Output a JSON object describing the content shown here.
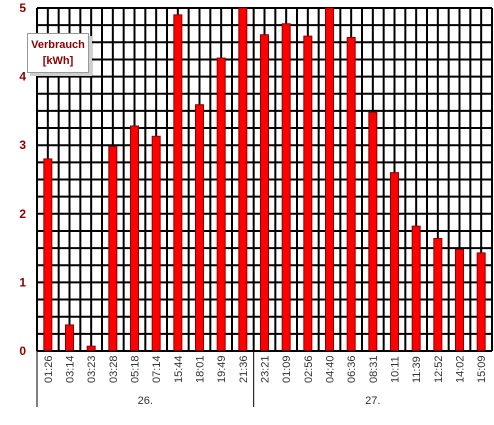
{
  "chart_data": {
    "type": "bar",
    "ylabel_lines": [
      "Verbrauch",
      "[kWh]"
    ],
    "ylim": [
      0,
      5
    ],
    "y_ticks": [
      "0",
      "1",
      "2",
      "3",
      "4",
      "5"
    ],
    "categories": [
      "01:26",
      "03:14",
      "03:23",
      "03:28",
      "05:18",
      "07:14",
      "15:44",
      "18:01",
      "19:49",
      "21:36",
      "23:21",
      "01:09",
      "02:56",
      "04:40",
      "06:36",
      "08:31",
      "10:11",
      "11:39",
      "12:52",
      "14:02",
      "15:09"
    ],
    "values": [
      2.8,
      0.38,
      0.07,
      2.98,
      3.28,
      3.13,
      4.9,
      3.59,
      4.27,
      5.0,
      4.61,
      4.77,
      4.59,
      5.0,
      4.57,
      3.48,
      2.6,
      1.82,
      1.64,
      1.48,
      1.43
    ],
    "groups": [
      {
        "label": "26.",
        "start": 0,
        "end": 9
      },
      {
        "label": "27.",
        "start": 10,
        "end": 20
      }
    ],
    "grid": true,
    "colors": {
      "bar": "#ff0000",
      "bar_edge": "#8b0000",
      "grid": "#000000",
      "label_text": "#8b0000",
      "axis_text": "#333333"
    }
  }
}
